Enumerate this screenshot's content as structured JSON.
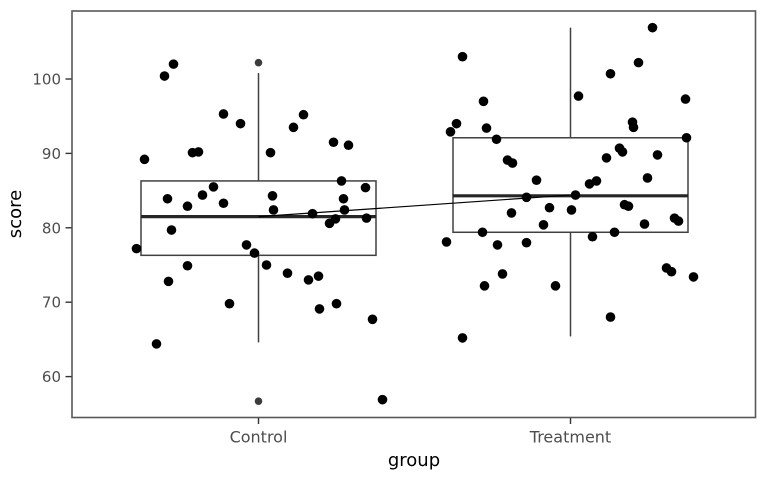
{
  "chart_data": {
    "type": "boxplot",
    "title": "",
    "xlabel": "group",
    "ylabel": "score",
    "categories": [
      "Control",
      "Treatment"
    ],
    "y_ticks": [
      60,
      70,
      80,
      90,
      100
    ],
    "ylim": [
      54.4,
      109.1
    ],
    "grid": false,
    "legend": false,
    "boxes": [
      {
        "group": "Control",
        "whisker_low": 64.6,
        "q1": 76.3,
        "median": 81.5,
        "q3": 86.3,
        "whisker_high": 100.8,
        "outliers": [
          102.2,
          56.7
        ]
      },
      {
        "group": "Treatment",
        "whisker_low": 65.4,
        "q1": 79.4,
        "median": 84.3,
        "q3": 92.1,
        "whisker_high": 106.9,
        "outliers": []
      }
    ],
    "connector_line": {
      "from_group": "Control",
      "from_value": 81.5,
      "to_group": "Treatment",
      "to_value": 84.4
    },
    "jitter_points": {
      "Control": [
        [
          -85,
          102.0
        ],
        [
          -94,
          100.4
        ],
        [
          -35,
          95.3
        ],
        [
          -18,
          94.0
        ],
        [
          45,
          95.2
        ],
        [
          35,
          93.5
        ],
        [
          12,
          90.1
        ],
        [
          75,
          91.5
        ],
        [
          90,
          91.1
        ],
        [
          -66,
          90.1
        ],
        [
          -60,
          90.2
        ],
        [
          -114,
          89.2
        ],
        [
          -45,
          85.5
        ],
        [
          -56,
          84.4
        ],
        [
          -91,
          83.9
        ],
        [
          -71,
          82.9
        ],
        [
          -35,
          83.3
        ],
        [
          14,
          84.3
        ],
        [
          15,
          82.4
        ],
        [
          54,
          81.9
        ],
        [
          83,
          86.3
        ],
        [
          85,
          83.9
        ],
        [
          86,
          82.4
        ],
        [
          107,
          85.4
        ],
        [
          108,
          81.3
        ],
        [
          71,
          80.6
        ],
        [
          77,
          81.2
        ],
        [
          -87,
          79.7
        ],
        [
          -122,
          77.2
        ],
        [
          -71,
          74.9
        ],
        [
          -90,
          72.8
        ],
        [
          -12,
          77.7
        ],
        [
          -4,
          76.6
        ],
        [
          8,
          75.0
        ],
        [
          29,
          73.9
        ],
        [
          50,
          73.0
        ],
        [
          60,
          73.5
        ],
        [
          -29,
          69.8
        ],
        [
          61,
          69.1
        ],
        [
          78,
          69.8
        ],
        [
          114,
          67.7
        ],
        [
          -102,
          64.4
        ],
        [
          124,
          56.9
        ]
      ],
      "Treatment": [
        [
          82,
          106.9
        ],
        [
          -108,
          103.0
        ],
        [
          68,
          102.2
        ],
        [
          40,
          100.7
        ],
        [
          -87,
          97.0
        ],
        [
          8,
          97.7
        ],
        [
          115,
          97.3
        ],
        [
          -114,
          94.0
        ],
        [
          -120,
          92.9
        ],
        [
          -84,
          93.4
        ],
        [
          -74,
          91.9
        ],
        [
          62,
          94.2
        ],
        [
          63,
          93.5
        ],
        [
          116,
          92.1
        ],
        [
          49,
          90.7
        ],
        [
          52,
          90.2
        ],
        [
          36,
          89.4
        ],
        [
          -63,
          89.1
        ],
        [
          -58,
          88.7
        ],
        [
          87,
          89.8
        ],
        [
          -34,
          86.4
        ],
        [
          77,
          86.7
        ],
        [
          19,
          85.9
        ],
        [
          26,
          86.3
        ],
        [
          -44,
          84.1
        ],
        [
          5,
          84.4
        ],
        [
          -21,
          82.7
        ],
        [
          1,
          82.4
        ],
        [
          54,
          83.1
        ],
        [
          58,
          82.9
        ],
        [
          -59,
          82.0
        ],
        [
          -27,
          80.4
        ],
        [
          44,
          79.4
        ],
        [
          74,
          80.5
        ],
        [
          104,
          81.3
        ],
        [
          108,
          80.9
        ],
        [
          -88,
          79.4
        ],
        [
          22,
          78.8
        ],
        [
          -124,
          78.1
        ],
        [
          -73,
          77.7
        ],
        [
          -44,
          78.0
        ],
        [
          -68,
          73.8
        ],
        [
          -86,
          72.2
        ],
        [
          -15,
          72.2
        ],
        [
          96,
          74.6
        ],
        [
          101,
          74.1
        ],
        [
          123,
          73.4
        ],
        [
          40,
          68.0
        ],
        [
          -108,
          65.2
        ]
      ]
    },
    "colors": {
      "background": "#ffffff",
      "point": "#000000",
      "outlier_point": "#3c3c3c",
      "box_stroke": "#404040",
      "median_stroke": "#262626",
      "whisker_stroke": "#404040",
      "panel_border": "#595959",
      "tick_mark": "#333333",
      "tick_text": "#4d4d4d",
      "axis_title": "#000000",
      "connector": "#000000"
    }
  }
}
